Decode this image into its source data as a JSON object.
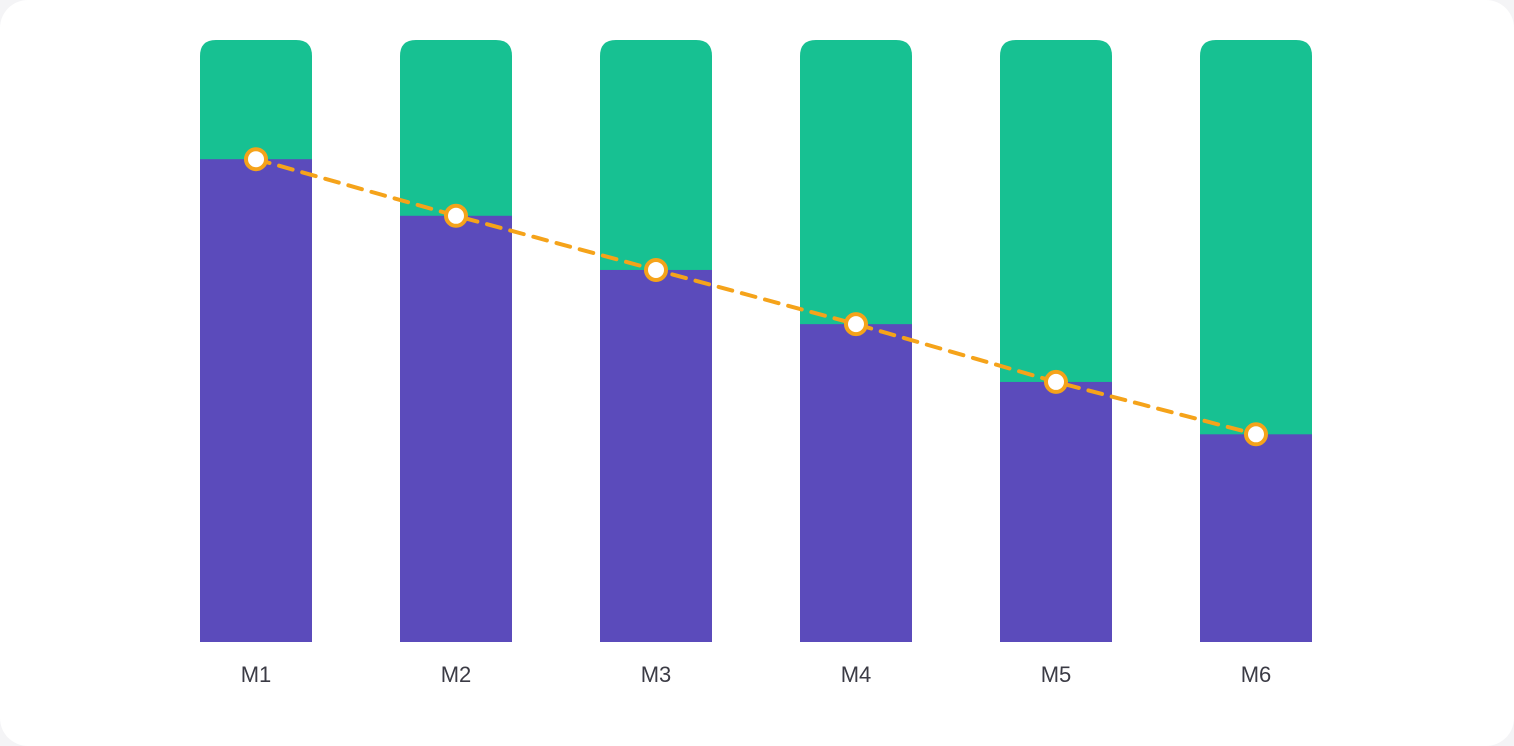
{
  "chart_data": {
    "type": "bar",
    "stacked": true,
    "categories": [
      "M1",
      "M2",
      "M3",
      "M4",
      "M5",
      "M6"
    ],
    "series": [
      {
        "values": [
          80.2,
          70.8,
          61.8,
          52.8,
          43.2,
          34.5
        ]
      },
      {
        "values": [
          19.8,
          29.2,
          38.2,
          47.2,
          56.8,
          65.5
        ]
      }
    ],
    "line": {
      "style": "dashed",
      "values": [
        80.2,
        70.8,
        61.8,
        52.8,
        43.2,
        34.5
      ]
    },
    "ylim": [
      0,
      100
    ],
    "grid": false,
    "legend": "none",
    "colors": {
      "bottom": "#5b4bbb",
      "top": "#17c192",
      "line": "#f5a31a",
      "marker_fill": "#ffffff"
    }
  }
}
